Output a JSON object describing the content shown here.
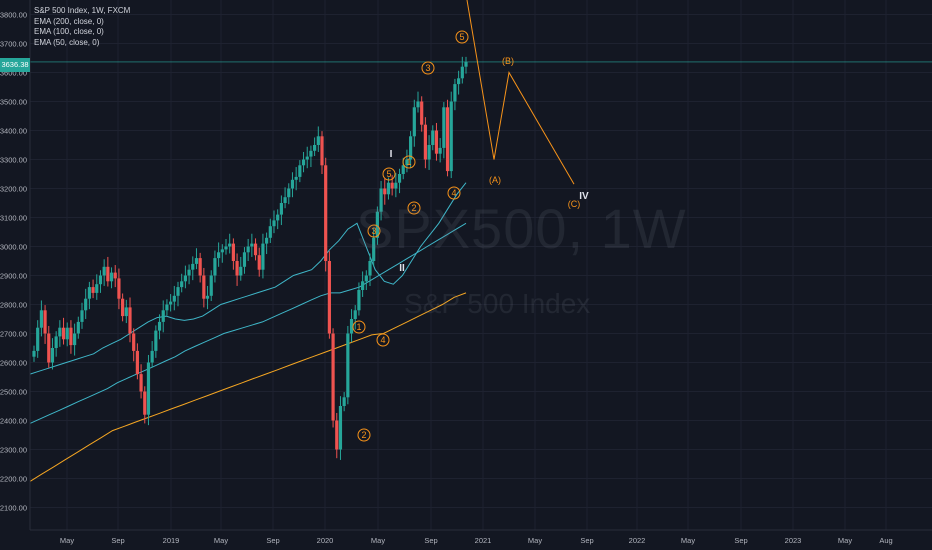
{
  "legend": {
    "symbol_line": "S&P 500 Index, 1W, FXCM",
    "ema200": "EMA (200, close, 0)",
    "ema100": "EMA (100, close, 0)",
    "ema50": "EMA (50, close, 0)"
  },
  "watermark": {
    "ticker": "SPX500, 1W",
    "name": "S&P 500 Index"
  },
  "last_price": "3636.38",
  "colors": {
    "background": "#131722",
    "up": "#26a69a",
    "down": "#ef5350",
    "ema50": "#3fb6c8",
    "ema100": "#3fb6c8",
    "ema200": "#f5a623",
    "wave": "#f7931a",
    "wave_white": "#e0e3eb",
    "grid": "#1e2230",
    "axis_text": "#b2b5be"
  },
  "chart_data": {
    "type": "candlestick",
    "y_axis": {
      "range": [
        2050,
        3850
      ],
      "ticks": [
        "3800.00",
        "3700.00",
        "3600.00",
        "3500.00",
        "3400.00",
        "3300.00",
        "3200.00",
        "3100.00",
        "3000.00",
        "2900.00",
        "2800.00",
        "2700.00",
        "2600.00",
        "2500.00",
        "2400.00",
        "2300.00",
        "2200.00",
        "2100.00"
      ]
    },
    "x_axis": {
      "ticks": [
        "May",
        "Sep",
        "2019",
        "May",
        "Sep",
        "2020",
        "May",
        "Sep",
        "2021",
        "May",
        "Sep",
        "2022",
        "May",
        "Sep",
        "2023",
        "May",
        "Aug"
      ]
    },
    "price_series_close": [
      2640,
      2720,
      2780,
      2700,
      2600,
      2650,
      2690,
      2720,
      2680,
      2720,
      2660,
      2700,
      2740,
      2780,
      2820,
      2860,
      2840,
      2870,
      2900,
      2930,
      2880,
      2910,
      2890,
      2820,
      2760,
      2790,
      2700,
      2640,
      2560,
      2500,
      2420,
      2600,
      2640,
      2710,
      2740,
      2780,
      2800,
      2810,
      2830,
      2860,
      2880,
      2900,
      2920,
      2940,
      2960,
      2900,
      2820,
      2830,
      2900,
      2960,
      2980,
      2990,
      3000,
      3010,
      2950,
      2900,
      2930,
      2980,
      3000,
      3010,
      2970,
      2920,
      3010,
      3030,
      3070,
      3090,
      3110,
      3150,
      3170,
      3200,
      3230,
      3240,
      3280,
      3300,
      3310,
      3330,
      3350,
      3380,
      3280,
      2950,
      2700,
      2400,
      2300,
      2450,
      2480,
      2700,
      2750,
      2780,
      2850,
      2880,
      2900,
      2950,
      3030,
      3120,
      3200,
      3180,
      3220,
      3200,
      3220,
      3250,
      3280,
      3300,
      3380,
      3480,
      3500,
      3420,
      3300,
      3350,
      3400,
      3320,
      3340,
      3480,
      3260,
      3500,
      3560,
      3580,
      3620,
      3636
    ],
    "ema50": [
      2560,
      2570,
      2580,
      2590,
      2600,
      2610,
      2620,
      2630,
      2650,
      2665,
      2680,
      2700,
      2720,
      2740,
      2755,
      2760,
      2750,
      2745,
      2750,
      2760,
      2780,
      2800,
      2810,
      2820,
      2830,
      2840,
      2850,
      2860,
      2880,
      2900,
      2910,
      2920,
      2950,
      2990,
      3020,
      3060,
      3080,
      3000,
      2920,
      2880,
      2870,
      2900,
      2950,
      3000,
      3040,
      3080,
      3130,
      3180,
      3220
    ],
    "ema100": [
      2390,
      2405,
      2420,
      2435,
      2450,
      2465,
      2480,
      2495,
      2510,
      2530,
      2545,
      2560,
      2575,
      2590,
      2605,
      2620,
      2640,
      2655,
      2670,
      2685,
      2700,
      2710,
      2720,
      2730,
      2740,
      2755,
      2770,
      2785,
      2800,
      2815,
      2830,
      2840,
      2840,
      2850,
      2860,
      2880,
      2900,
      2920,
      2940,
      2960,
      2980,
      3000,
      3020,
      3040,
      3060,
      3080
    ],
    "ema200": [
      2190,
      2215,
      2240,
      2265,
      2290,
      2315,
      2340,
      2365,
      2380,
      2395,
      2410,
      2425,
      2440,
      2455,
      2470,
      2485,
      2500,
      2515,
      2530,
      2545,
      2560,
      2575,
      2590,
      2605,
      2620,
      2635,
      2650,
      2665,
      2680,
      2695,
      2700,
      2720,
      2740,
      2760,
      2780,
      2800,
      2825,
      2840
    ],
    "wave_labels": [
      {
        "text": "1",
        "circled": true
      },
      {
        "text": "2",
        "circled": true
      },
      {
        "text": "3",
        "circled": true
      },
      {
        "text": "4",
        "circled": true
      },
      {
        "text": "5",
        "circled": true
      },
      {
        "text": "1",
        "circled": true
      },
      {
        "text": "2",
        "circled": true
      },
      {
        "text": "3",
        "circled": true
      },
      {
        "text": "4",
        "circled": true
      },
      {
        "text": "5",
        "circled": true
      },
      {
        "text": "I",
        "circled": false
      },
      {
        "text": "II",
        "circled": false
      },
      {
        "text": "IV",
        "circled": false
      },
      {
        "text": "(A)",
        "circled": false
      },
      {
        "text": "(B)",
        "circled": false
      },
      {
        "text": "(C)",
        "circled": false
      }
    ],
    "projection": {
      "points": [
        3860,
        3300,
        3600,
        3210
      ]
    }
  }
}
